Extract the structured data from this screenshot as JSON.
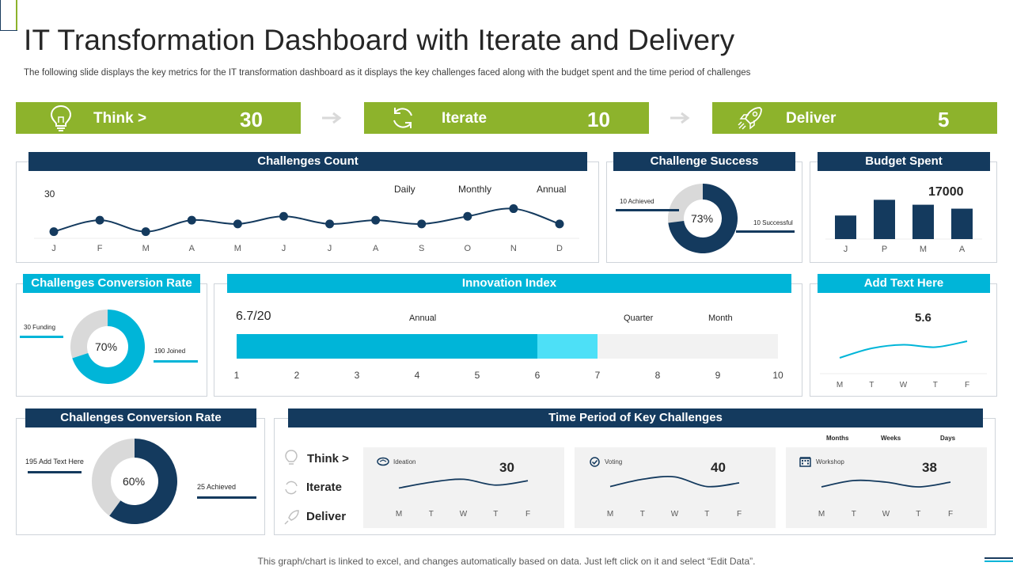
{
  "page": {
    "title": "IT Transformation  Dashboard with Iterate and Delivery",
    "subtitle": "The following slide displays the key metrics for the IT transformation dashboard as it displays the key challenges faced along with the budget spent and the time period of challenges",
    "footer": "This graph/chart is linked to excel,  and changes automatically based on data. Just left click on it and select “Edit Data”."
  },
  "colors": {
    "green": "#8db32c",
    "navy": "#143a5e",
    "cyan": "#00b5d8",
    "light_cyan": "#4de0f7",
    "grey": "#d9d9d9"
  },
  "stages": [
    {
      "label": "Think >",
      "value": "30",
      "icon": "lightbulb-icon"
    },
    {
      "label": "Iterate",
      "value": "10",
      "icon": "refresh-icon"
    },
    {
      "label": "Deliver",
      "value": "5",
      "icon": "rocket-icon"
    }
  ],
  "challenges_count": {
    "header": "Challenges Count",
    "annotations": {
      "value": "30",
      "daily": "Daily",
      "monthly": "Monthly",
      "annual": "Annual"
    }
  },
  "challenge_success": {
    "header": "Challenge Success",
    "center": "73%",
    "achieved_label": "10 Achieved",
    "successful_label": "10 Successful"
  },
  "budget_spent": {
    "header": "Budget Spent",
    "value_label": "17000"
  },
  "conversion_rate_top": {
    "header": "Challenges Conversion Rate",
    "center": "70%",
    "left_label": "30 Funding",
    "right_label": "190 Joined"
  },
  "innovation_index": {
    "header": "Innovation Index",
    "score": "6.7/20",
    "labels": {
      "annual": "Annual",
      "quarter": "Quarter",
      "month": "Month"
    }
  },
  "add_text": {
    "header": "Add Text Here",
    "value_label": "5.6"
  },
  "conversion_rate_bottom": {
    "header": "Challenges Conversion Rate",
    "center": "60%",
    "left_label": "195 Add Text Here",
    "right_label": "25 Achieved"
  },
  "time_period": {
    "header": "Time Period of Key Challenges",
    "col_labels": [
      "Months",
      "Weeks",
      "Days"
    ],
    "rows": [
      {
        "label": "Think >",
        "icon": "lightbulb-icon"
      },
      {
        "label": "Iterate",
        "icon": "refresh-icon"
      },
      {
        "label": "Deliver",
        "icon": "rocket-icon"
      }
    ],
    "cards": [
      {
        "name": "Ideation",
        "value": "30",
        "icon": "handshake-icon"
      },
      {
        "name": "Voting",
        "value": "40",
        "icon": "check-circle-icon"
      },
      {
        "name": "Workshop",
        "value": "38",
        "icon": "building-icon"
      }
    ]
  },
  "chart_data": [
    {
      "id": "challenges_count",
      "type": "line",
      "title": "Challenges Count",
      "categories": [
        "J",
        "F",
        "M",
        "A",
        "M",
        "J",
        "J",
        "A",
        "S",
        "O",
        "N",
        "D"
      ],
      "values": [
        30,
        33,
        30,
        33,
        32,
        34,
        32,
        33,
        32,
        34,
        36,
        32
      ],
      "ylim": [
        20,
        45
      ],
      "grid": false,
      "markers": true
    },
    {
      "id": "challenge_success",
      "type": "pie",
      "title": "Challenge Success",
      "labels": [
        "Achieved",
        "Successful"
      ],
      "values": [
        27,
        73
      ]
    },
    {
      "id": "budget_spent",
      "type": "bar",
      "title": "Budget Spent",
      "categories": [
        "J",
        "P",
        "M",
        "A"
      ],
      "values": [
        12000,
        20000,
        17500,
        15500
      ],
      "ylim": [
        0,
        25000
      ]
    },
    {
      "id": "conversion_rate_top",
      "type": "pie",
      "title": "Challenges Conversion Rate",
      "labels": [
        "Funding",
        "Joined"
      ],
      "values": [
        30,
        70
      ]
    },
    {
      "id": "innovation_index",
      "type": "bar",
      "orientation": "horizontal",
      "title": "Innovation Index",
      "segments": [
        {
          "name": "Annual",
          "value": 6
        },
        {
          "name": "Quarter",
          "value": 1
        }
      ],
      "xlim": [
        1,
        10
      ],
      "ticks": [
        "1",
        "2",
        "3",
        "4",
        "5",
        "6",
        "7",
        "8",
        "9",
        "10"
      ]
    },
    {
      "id": "add_text",
      "type": "line",
      "title": "Add Text Here",
      "categories": [
        "M",
        "T",
        "W",
        "T",
        "F"
      ],
      "values": [
        4.2,
        5.0,
        5.3,
        5.1,
        5.6
      ],
      "ylim": [
        3,
        7
      ]
    },
    {
      "id": "conversion_rate_bottom",
      "type": "pie",
      "title": "Challenges Conversion Rate",
      "labels": [
        "Add Text Here",
        "Achieved"
      ],
      "values": [
        40,
        60
      ]
    },
    {
      "id": "ideation",
      "type": "line",
      "title": "Ideation",
      "categories": [
        "M",
        "T",
        "W",
        "T",
        "F"
      ],
      "values": [
        24,
        28,
        30,
        26,
        29
      ],
      "ylim": [
        15,
        40
      ]
    },
    {
      "id": "voting",
      "type": "line",
      "title": "Voting",
      "categories": [
        "M",
        "T",
        "W",
        "T",
        "F"
      ],
      "values": [
        32,
        38,
        40,
        32,
        35
      ],
      "ylim": [
        20,
        50
      ]
    },
    {
      "id": "workshop",
      "type": "line",
      "title": "Workshop",
      "categories": [
        "M",
        "T",
        "W",
        "T",
        "F"
      ],
      "values": [
        34,
        38,
        37,
        34,
        37
      ],
      "ylim": [
        25,
        48
      ]
    }
  ]
}
